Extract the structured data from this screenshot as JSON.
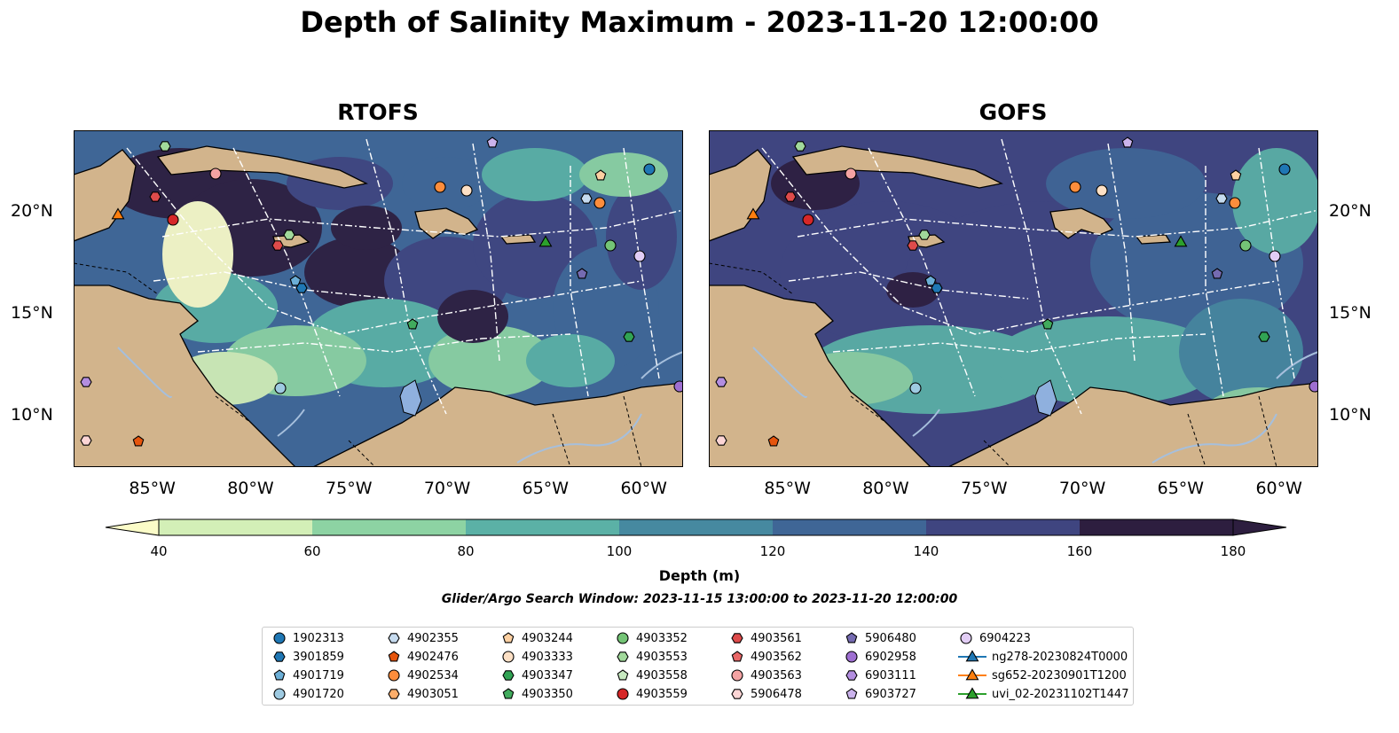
{
  "title": "Depth of Salinity Maximum - 2023-11-20 12:00:00",
  "panels": [
    {
      "title": "RTOFS",
      "style": "rtofs"
    },
    {
      "title": "GOFS",
      "style": "gofs"
    }
  ],
  "map_axes": {
    "lon_ticks": [
      "85°W",
      "80°W",
      "75°W",
      "70°W",
      "65°W",
      "60°W"
    ],
    "lat_ticks": [
      "20°N",
      "15°N",
      "10°N"
    ]
  },
  "colorbar": {
    "label": "Depth (m)",
    "ticks": [
      "40",
      "60",
      "80",
      "100",
      "120",
      "140",
      "160",
      "180"
    ],
    "colors": [
      "#fbfcc8",
      "#d3efb7",
      "#8dd3a3",
      "#5bb1a6",
      "#4689a0",
      "#3f6696",
      "#3f4580",
      "#2d1e3f"
    ]
  },
  "search_window": "Glider/Argo Search Window: 2023-11-15 13:00:00 to 2023-11-20 12:00:00",
  "colors": {
    "land": "#d2b48c",
    "water": "#a6bfdc",
    "lake": "#8fb0de"
  },
  "legend": [
    {
      "label": "1902313",
      "marker": "circle",
      "color": "#1f77b4"
    },
    {
      "label": "3901859",
      "marker": "hexagon",
      "color": "#1f77b4"
    },
    {
      "label": "4901719",
      "marker": "pentagon",
      "color": "#6baed6"
    },
    {
      "label": "4901720",
      "marker": "circle",
      "color": "#9ecae1"
    },
    {
      "label": "4902355",
      "marker": "hexagon",
      "color": "#c6dbef"
    },
    {
      "label": "4902476",
      "marker": "pentagon",
      "color": "#e6550d"
    },
    {
      "label": "4902534",
      "marker": "circle",
      "color": "#fd8d3c"
    },
    {
      "label": "4903051",
      "marker": "hexagon",
      "color": "#fdae6b"
    },
    {
      "label": "4903244",
      "marker": "pentagon",
      "color": "#fdd0a2"
    },
    {
      "label": "4903333",
      "marker": "circle",
      "color": "#fde0c5"
    },
    {
      "label": "4903347",
      "marker": "hexagon",
      "color": "#31a354"
    },
    {
      "label": "4903350",
      "marker": "pentagon",
      "color": "#41ab5d"
    },
    {
      "label": "4903352",
      "marker": "circle",
      "color": "#74c476"
    },
    {
      "label": "4903553",
      "marker": "hexagon",
      "color": "#a1d99b"
    },
    {
      "label": "4903558",
      "marker": "pentagon",
      "color": "#c7e9c0"
    },
    {
      "label": "4903559",
      "marker": "circle",
      "color": "#d62728"
    },
    {
      "label": "4903561",
      "marker": "hexagon",
      "color": "#de4b4b"
    },
    {
      "label": "4903562",
      "marker": "pentagon",
      "color": "#e96767"
    },
    {
      "label": "4903563",
      "marker": "circle",
      "color": "#f4a3a3"
    },
    {
      "label": "5906478",
      "marker": "hexagon",
      "color": "#fcd5d5"
    },
    {
      "label": "5906480",
      "marker": "pentagon",
      "color": "#756bb1"
    },
    {
      "label": "6902958",
      "marker": "circle",
      "color": "#9e6fd1"
    },
    {
      "label": "6903111",
      "marker": "hexagon",
      "color": "#b38ee0"
    },
    {
      "label": "6903727",
      "marker": "pentagon",
      "color": "#cbb3ec"
    },
    {
      "label": "6904223",
      "marker": "circle",
      "color": "#e2cdf5"
    },
    {
      "label": "ng278-20230824T0000",
      "marker": "triangle-line",
      "color": "#1f77b4"
    },
    {
      "label": "sg652-20230901T1200",
      "marker": "triangle-line",
      "color": "#ff7f0e"
    },
    {
      "label": "uvi_02-20231102T1447",
      "marker": "triangle-line",
      "color": "#2ca02c"
    }
  ]
}
